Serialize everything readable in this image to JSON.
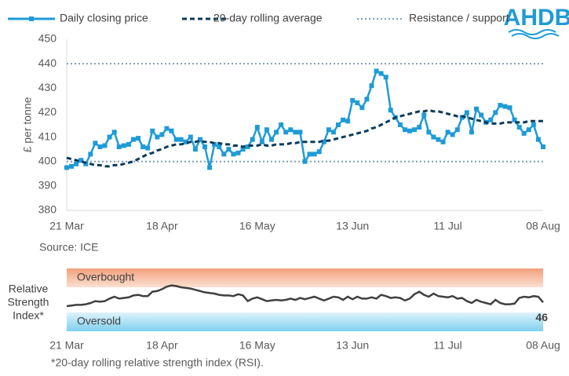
{
  "logo": "AHDB",
  "chart_data": [
    {
      "type": "line",
      "ylabel": "£ per tonne",
      "source": "Source: ICE",
      "legend": "top",
      "categories": [
        "21 Mar",
        null,
        null,
        null,
        null,
        null,
        null,
        null,
        null,
        null,
        null,
        null,
        null,
        null,
        null,
        null,
        null,
        null,
        null,
        null,
        "18 Apr",
        null,
        null,
        null,
        null,
        null,
        null,
        null,
        null,
        null,
        null,
        null,
        null,
        null,
        null,
        null,
        null,
        null,
        null,
        null,
        "16 May",
        null,
        null,
        null,
        null,
        null,
        null,
        null,
        null,
        null,
        null,
        null,
        null,
        null,
        null,
        null,
        null,
        null,
        null,
        null,
        "13 Jun",
        null,
        null,
        null,
        null,
        null,
        null,
        null,
        null,
        null,
        null,
        null,
        null,
        null,
        null,
        null,
        null,
        null,
        null,
        null,
        "11 Jul",
        null,
        null,
        null,
        null,
        null,
        null,
        null,
        null,
        null,
        null,
        null,
        null,
        null,
        null,
        null,
        null,
        null,
        null,
        null,
        "08 Aug"
      ],
      "series": [
        {
          "name": "Daily closing price",
          "color": "#1e9bd7",
          "style": "solid",
          "marker": "square",
          "values": [
            397.5,
            398,
            399,
            400.5,
            399,
            403,
            407.5,
            406,
            406.5,
            410,
            412,
            406,
            406.5,
            407,
            409,
            409.5,
            406,
            405.5,
            412.5,
            410,
            411,
            413.5,
            412.5,
            409,
            409,
            408,
            410,
            405,
            409,
            406,
            397.5,
            407,
            406,
            403,
            405,
            403,
            403.5,
            405,
            406,
            409,
            414,
            408,
            413,
            409,
            412,
            415,
            412,
            413,
            412,
            412,
            400,
            403,
            403,
            404,
            408,
            413,
            412,
            415,
            417,
            416.5,
            425,
            424,
            422,
            425.5,
            431,
            437,
            436,
            434.5,
            421,
            418,
            415,
            413,
            412.5,
            413,
            414,
            419,
            412,
            410,
            409,
            408,
            412,
            411,
            413,
            418,
            420,
            412,
            421.5,
            419,
            416,
            417,
            420,
            423,
            422.5,
            422,
            417,
            414,
            411.5,
            413,
            415,
            409,
            406
          ]
        },
        {
          "name": "20-day rolling average",
          "color": "#0b3a5b",
          "style": "dashed",
          "values": [
            401.5,
            401,
            400.5,
            400,
            399.5,
            399,
            398.5,
            398.5,
            398,
            398,
            398.5,
            398.5,
            399,
            399.5,
            400,
            401,
            402,
            403,
            403.5,
            404.5,
            405,
            406,
            406.5,
            407,
            407,
            407.5,
            408,
            408,
            408.5,
            408,
            408,
            407.5,
            407.5,
            407,
            407,
            406.5,
            406.5,
            406,
            406.5,
            406.5,
            406.5,
            407,
            406.5,
            406.5,
            407,
            407,
            407,
            407.5,
            407.5,
            408,
            408,
            408,
            408,
            408,
            408.5,
            408.5,
            409,
            409.5,
            410,
            410.5,
            411,
            411.5,
            412,
            412.5,
            413.5,
            414,
            415,
            416,
            417,
            418,
            418.5,
            419,
            419.5,
            420,
            420.5,
            420.5,
            421,
            420.5,
            420.5,
            420,
            419.5,
            419,
            418.5,
            418.5,
            418,
            417.5,
            417,
            416.5,
            416,
            415.5,
            415.5,
            415.5,
            416,
            416,
            416,
            416,
            416,
            416.5,
            416.5,
            416.5,
            416.5
          ]
        }
      ],
      "hlines": {
        "name": "Resistance / support",
        "color": "#7f9db9",
        "style": "dotted",
        "values": [
          440,
          400
        ]
      },
      "ylim": [
        380,
        450
      ],
      "yticks": [
        380,
        390,
        400,
        410,
        420,
        430,
        440,
        450
      ]
    },
    {
      "type": "line",
      "ylabel_lines": [
        "Relative",
        "Strength",
        "Index*"
      ],
      "note": "*20-day rolling relative strength index (RSI).",
      "categories": [
        "21 Mar",
        null,
        null,
        null,
        null,
        null,
        null,
        null,
        null,
        null,
        null,
        null,
        null,
        null,
        null,
        null,
        null,
        null,
        null,
        null,
        "18 Apr",
        null,
        null,
        null,
        null,
        null,
        null,
        null,
        null,
        null,
        null,
        null,
        null,
        null,
        null,
        null,
        null,
        null,
        null,
        null,
        "16 May",
        null,
        null,
        null,
        null,
        null,
        null,
        null,
        null,
        null,
        null,
        null,
        null,
        null,
        null,
        null,
        null,
        null,
        null,
        null,
        "13 Jun",
        null,
        null,
        null,
        null,
        null,
        null,
        null,
        null,
        null,
        null,
        null,
        null,
        null,
        null,
        null,
        null,
        null,
        null,
        null,
        "11 Jul",
        null,
        null,
        null,
        null,
        null,
        null,
        null,
        null,
        null,
        null,
        null,
        null,
        null,
        null,
        null,
        null,
        null,
        null,
        null,
        "08 Aug"
      ],
      "zones": [
        {
          "label": "Overbought",
          "range": [
            70,
            100
          ],
          "color": "#f2a07b"
        },
        {
          "label": "Oversold",
          "range": [
            0,
            30
          ],
          "color": "#7fd0f0"
        }
      ],
      "label_last": true,
      "series": [
        {
          "color": "#404040",
          "style": "solid",
          "values": [
            40,
            41,
            42,
            42,
            43,
            45,
            48,
            47,
            48,
            52,
            55,
            52,
            53,
            54,
            57,
            58,
            56,
            56,
            63,
            64,
            67,
            71,
            73,
            72,
            70,
            69,
            68,
            66,
            64,
            62,
            61,
            60,
            58,
            57,
            57,
            56,
            59,
            57,
            48,
            52,
            54,
            51,
            48,
            49,
            50,
            49,
            50,
            52,
            50,
            53,
            51,
            53,
            55,
            52,
            49,
            52,
            55,
            54,
            50,
            55,
            51,
            55,
            52,
            52,
            54,
            52,
            58,
            56,
            53,
            54,
            53,
            49,
            52,
            59,
            63,
            58,
            55,
            60,
            56,
            55,
            54,
            56,
            52,
            53,
            48,
            45,
            50,
            47,
            45,
            43,
            50,
            45,
            43,
            43,
            44,
            53,
            55,
            54,
            56,
            55,
            46
          ]
        }
      ],
      "ylim": [
        0,
        100
      ]
    }
  ]
}
